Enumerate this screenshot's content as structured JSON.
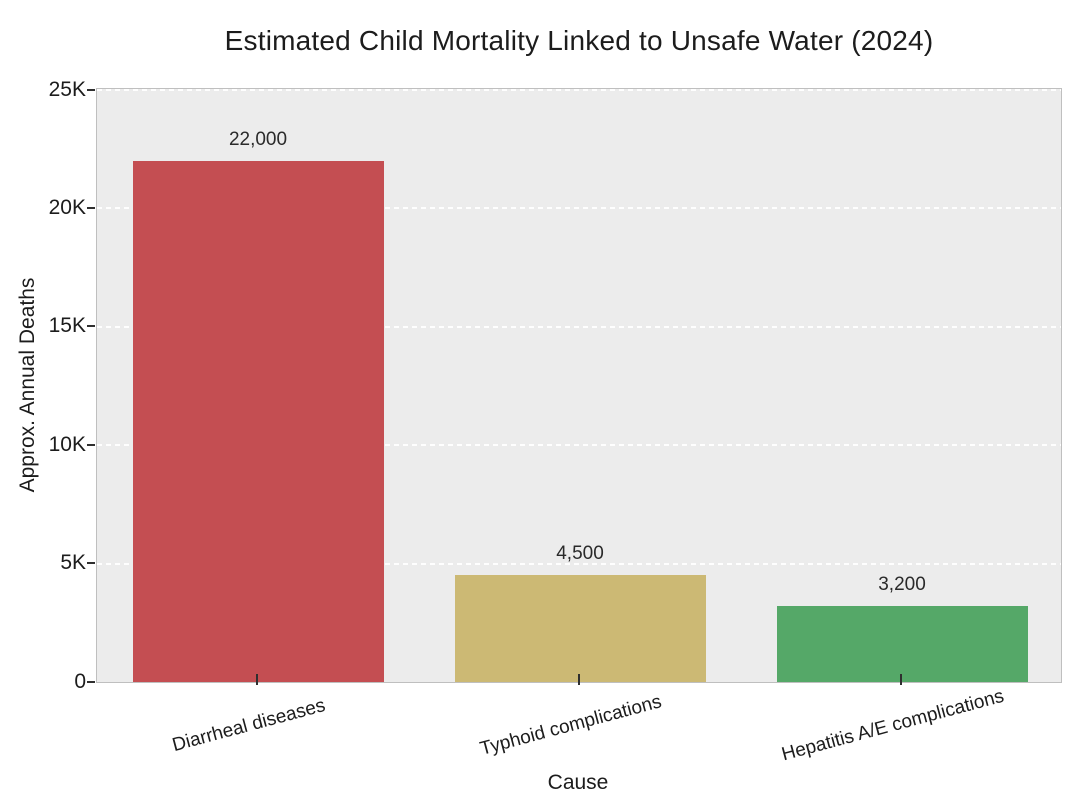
{
  "chart_data": {
    "type": "bar",
    "title": "Estimated Child Mortality Linked to Unsafe Water (2024)",
    "categories": [
      "Diarrheal diseases",
      "Typhoid complications",
      "Hepatitis A/E complications"
    ],
    "values": [
      22000,
      4500,
      3200
    ],
    "value_labels": [
      "22,000",
      "4,500",
      "3,200"
    ],
    "bar_colors": [
      "#c44e52",
      "#ccb974",
      "#55a868"
    ],
    "xlabel": "Cause",
    "ylabel": "Approx. Annual Deaths",
    "ylim": [
      0,
      25000
    ],
    "yticks": [
      0,
      5000,
      10000,
      15000,
      20000,
      25000
    ],
    "ytick_labels": [
      "0",
      "5K",
      "10K",
      "15K",
      "20K",
      "25K"
    ],
    "xtick_rotation_deg": 15,
    "grid": "horizontal-dashed",
    "legend": "none",
    "plot_bg": "#ececec",
    "grid_color": "#ffffff",
    "text_color": "#1c1c1c"
  }
}
